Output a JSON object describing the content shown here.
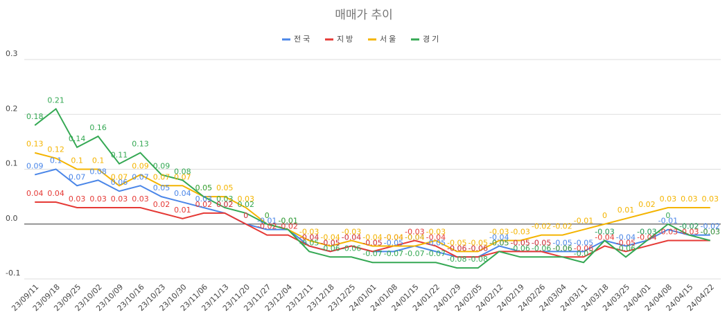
{
  "chart_data": {
    "type": "line",
    "title": "매매가 추이",
    "categories": [
      "23/09/11",
      "23/09/18",
      "23/09/25",
      "23/10/02",
      "23/10/09",
      "23/10/16",
      "23/10/23",
      "23/10/30",
      "23/11/06",
      "23/11/13",
      "23/11/20",
      "23/11/27",
      "23/12/04",
      "23/12/11",
      "23/12/18",
      "23/12/25",
      "24/01/01",
      "24/01/08",
      "24/01/15",
      "24/01/22",
      "24/01/29",
      "24/02/05",
      "24/02/12",
      "24/02/19",
      "24/02/26",
      "24/03/04",
      "24/03/11",
      "24/03/18",
      "24/03/25",
      "24/04/01",
      "24/04/08",
      "24/04/15",
      "24/04/22"
    ],
    "series": [
      {
        "name": "전국",
        "color": "#4a86e8",
        "values": [
          0.09,
          0.1,
          0.07,
          0.08,
          0.06,
          0.07,
          0.05,
          0.04,
          0.03,
          0.02,
          0,
          -0.01,
          -0.01,
          -0.04,
          -0.05,
          -0.04,
          -0.05,
          -0.05,
          -0.04,
          -0.05,
          -0.06,
          -0.06,
          -0.04,
          -0.05,
          -0.05,
          -0.05,
          -0.05,
          -0.03,
          -0.04,
          -0.03,
          -0.01,
          -0.02,
          -0.02
        ]
      },
      {
        "name": "지방",
        "color": "#e53935",
        "values": [
          0.04,
          0.04,
          0.03,
          0.03,
          0.03,
          0.03,
          0.02,
          0.01,
          0.02,
          0.02,
          0,
          -0.02,
          -0.02,
          -0.04,
          -0.05,
          -0.04,
          -0.05,
          -0.04,
          -0.03,
          -0.04,
          -0.06,
          -0.06,
          -0.05,
          -0.05,
          -0.05,
          -0.06,
          -0.06,
          -0.04,
          -0.05,
          -0.04,
          -0.03,
          -0.03,
          -0.03
        ]
      },
      {
        "name": "서울",
        "color": "#f4b400",
        "values": [
          0.13,
          0.12,
          0.1,
          0.1,
          0.07,
          0.09,
          0.07,
          0.07,
          0.05,
          0.05,
          0.03,
          0,
          -0.01,
          -0.03,
          -0.04,
          -0.03,
          -0.04,
          -0.04,
          -0.04,
          -0.03,
          -0.05,
          -0.05,
          -0.03,
          -0.03,
          -0.02,
          -0.02,
          -0.01,
          0,
          0.01,
          0.02,
          0.03,
          0.03,
          0.03
        ]
      },
      {
        "name": "경기",
        "color": "#34a853",
        "values": [
          0.18,
          0.21,
          0.14,
          0.16,
          0.11,
          0.13,
          0.09,
          0.08,
          0.05,
          0.03,
          0.02,
          0,
          -0.01,
          -0.05,
          -0.06,
          -0.06,
          -0.07,
          -0.07,
          -0.07,
          -0.07,
          -0.08,
          -0.08,
          -0.05,
          -0.06,
          -0.06,
          -0.06,
          -0.07,
          -0.03,
          -0.06,
          -0.03,
          0,
          -0.02,
          -0.03
        ]
      }
    ],
    "ylim": [
      -0.1,
      0.3
    ],
    "yticks": [
      -0.1,
      {
        "value": 0,
        "label": "0.0"
      },
      0.1,
      0.2,
      0.3
    ],
    "grid": true
  }
}
